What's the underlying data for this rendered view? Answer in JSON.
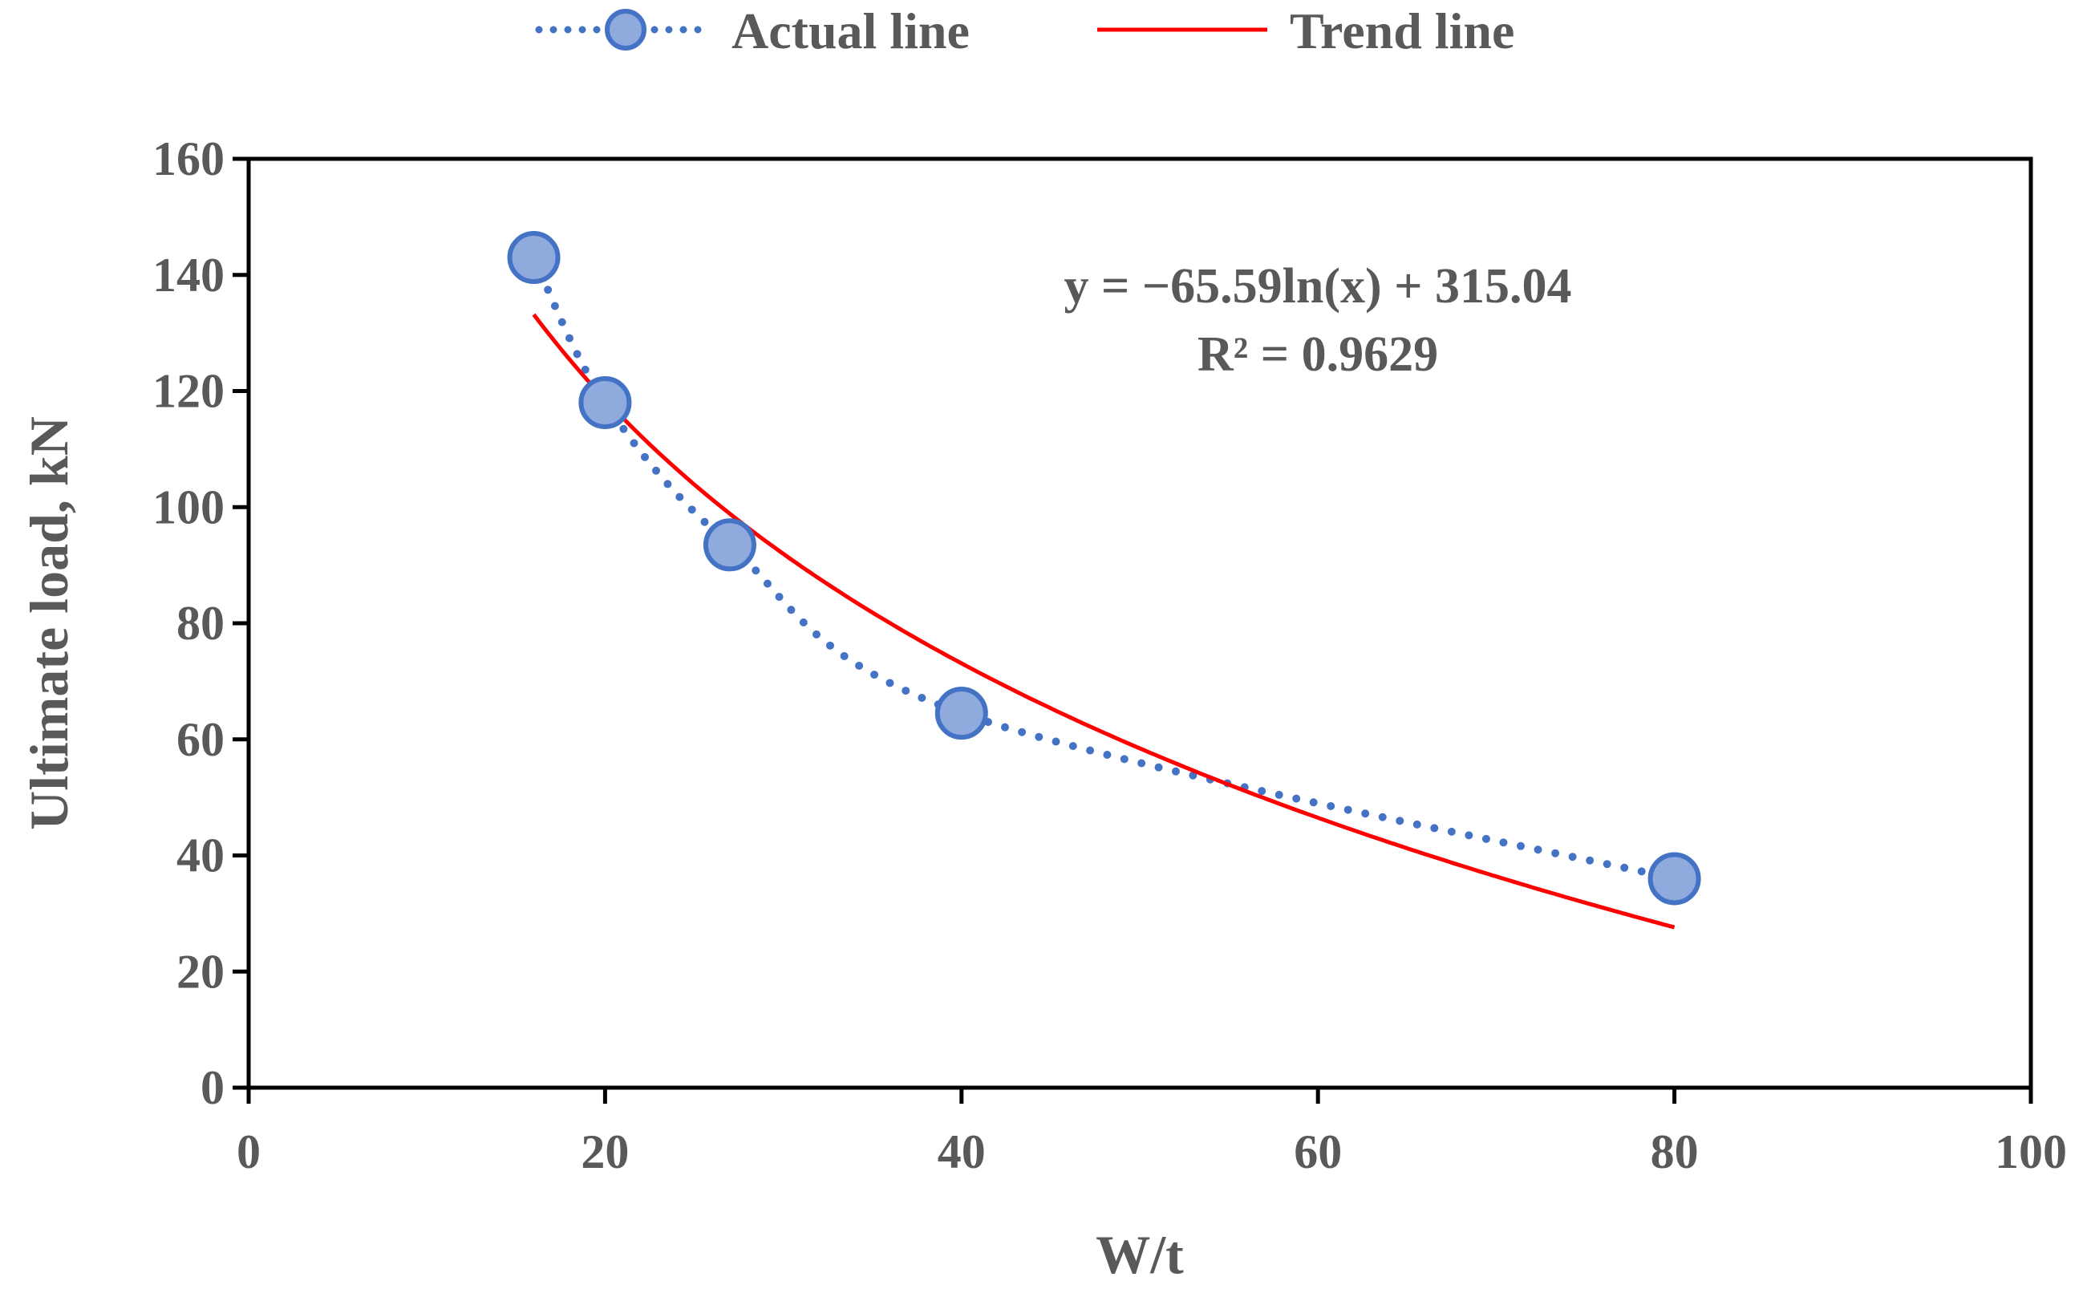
{
  "chart_data": {
    "type": "scatter",
    "title": "",
    "xlabel": "W/t",
    "ylabel": "Ultimate load, kN",
    "xlim": [
      0,
      100
    ],
    "ylim": [
      0,
      160
    ],
    "xticks": [
      0,
      20,
      40,
      60,
      80,
      100
    ],
    "yticks": [
      0,
      20,
      40,
      60,
      80,
      100,
      120,
      140,
      160
    ],
    "grid": false,
    "legend_position": "top-center",
    "series": [
      {
        "name": "Actual line",
        "style": "dotted-with-markers",
        "color": "#4472C4",
        "marker_fill": "#8FAADC",
        "x": [
          16,
          20,
          27,
          40,
          80
        ],
        "y": [
          143,
          118,
          93.5,
          64.5,
          36
        ]
      },
      {
        "name": "Trend line",
        "style": "solid",
        "color": "#FF0000",
        "model": "logarithmic",
        "a": -65.59,
        "b": 315.04,
        "x_range": [
          16,
          80
        ]
      }
    ],
    "annotations": {
      "equation": "y = −65.59ln(x) + 315.04",
      "r_squared": "R² = 0.9629"
    }
  }
}
